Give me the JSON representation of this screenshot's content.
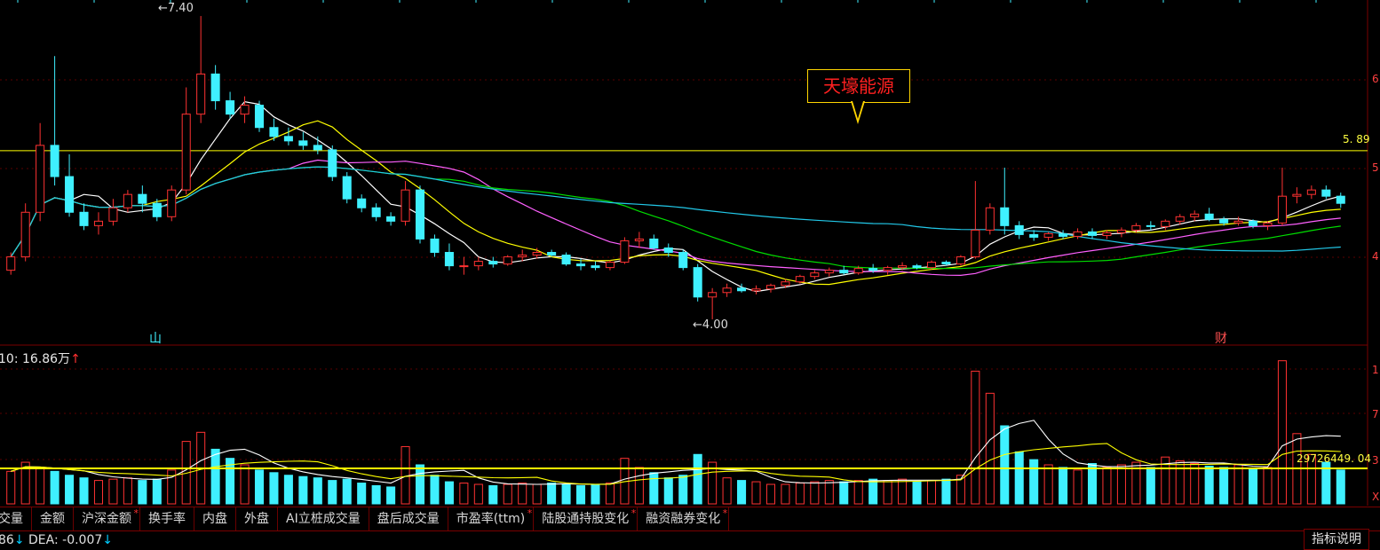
{
  "stock_name": "天壕能源",
  "labels": {
    "high": "7.40",
    "low": "4.00",
    "ref_price": "5. 89",
    "vol_ref": "29726449. 04",
    "vol_indicator_prefix": "10: 16.86万",
    "vol_indicator_arrow": "↑",
    "mark_left": "山",
    "mark_right": "财"
  },
  "right_axis_ticks": {
    "price": [
      "6",
      "5",
      "4"
    ],
    "volume": [
      "1",
      "7",
      "3",
      "X"
    ]
  },
  "tabs": [
    {
      "label": "交量",
      "star": false
    },
    {
      "label": "金额",
      "star": false
    },
    {
      "label": "沪深金额",
      "star": true
    },
    {
      "label": "换手率",
      "star": false
    },
    {
      "label": "内盘",
      "star": false
    },
    {
      "label": "外盘",
      "star": false
    },
    {
      "label": "AI立桩成交量",
      "star": false
    },
    {
      "label": "盘后成交量",
      "star": false
    },
    {
      "label": "市盈率(ttm)",
      "star": true
    },
    {
      "label": "陆股通持股变化",
      "star": true
    },
    {
      "label": "融资融券变化",
      "star": true
    }
  ],
  "status": {
    "left_value": "86",
    "dea_text": "DEA: -0.007",
    "help_button": "指标说明"
  },
  "colors": {
    "up": "#ff3232",
    "down": "#3ff0ff",
    "ma5": "#ffffff",
    "ma10": "#ffff00",
    "ma20": "#ff60ff",
    "ma30": "#00dd00",
    "ma60": "#22c8e8",
    "ref_line": "#ffff00",
    "border": "#7a0000"
  },
  "chart_data": {
    "type": "candlestick",
    "price_range": [
      3.9,
      7.5
    ],
    "price_high": 7.4,
    "price_low": 4.0,
    "ref_price": 5.89,
    "candles": [
      [
        4.55,
        4.75,
        4.5,
        4.7
      ],
      [
        4.7,
        5.3,
        4.65,
        5.2
      ],
      [
        5.2,
        6.2,
        5.1,
        5.95
      ],
      [
        5.95,
        6.95,
        5.5,
        5.6
      ],
      [
        5.6,
        5.85,
        5.15,
        5.2
      ],
      [
        5.2,
        5.3,
        5.0,
        5.05
      ],
      [
        5.05,
        5.2,
        4.95,
        5.1
      ],
      [
        5.1,
        5.35,
        5.05,
        5.25
      ],
      [
        5.25,
        5.45,
        5.2,
        5.4
      ],
      [
        5.4,
        5.5,
        5.2,
        5.3
      ],
      [
        5.3,
        5.35,
        5.1,
        5.15
      ],
      [
        5.15,
        5.5,
        5.1,
        5.45
      ],
      [
        5.45,
        6.6,
        5.4,
        6.3
      ],
      [
        6.3,
        7.4,
        6.2,
        6.75
      ],
      [
        6.75,
        6.85,
        6.35,
        6.45
      ],
      [
        6.45,
        6.55,
        6.25,
        6.3
      ],
      [
        6.3,
        6.5,
        6.2,
        6.4
      ],
      [
        6.4,
        6.45,
        6.1,
        6.15
      ],
      [
        6.15,
        6.25,
        6.0,
        6.05
      ],
      [
        6.05,
        6.15,
        5.95,
        6.0
      ],
      [
        6.0,
        6.1,
        5.9,
        5.95
      ],
      [
        5.95,
        6.05,
        5.85,
        5.9
      ],
      [
        5.9,
        5.95,
        5.55,
        5.6
      ],
      [
        5.6,
        5.65,
        5.3,
        5.35
      ],
      [
        5.35,
        5.4,
        5.2,
        5.25
      ],
      [
        5.25,
        5.3,
        5.1,
        5.15
      ],
      [
        5.15,
        5.2,
        5.05,
        5.1
      ],
      [
        5.1,
        5.55,
        5.05,
        5.45
      ],
      [
        5.45,
        5.5,
        4.85,
        4.9
      ],
      [
        4.9,
        4.95,
        4.7,
        4.75
      ],
      [
        4.75,
        4.85,
        4.55,
        4.6
      ],
      [
        4.6,
        4.7,
        4.5,
        4.6
      ],
      [
        4.6,
        4.7,
        4.55,
        4.65
      ],
      [
        4.65,
        4.7,
        4.58,
        4.62
      ],
      [
        4.62,
        4.72,
        4.6,
        4.7
      ],
      [
        4.7,
        4.78,
        4.65,
        4.72
      ],
      [
        4.72,
        4.8,
        4.68,
        4.75
      ],
      [
        4.75,
        4.78,
        4.7,
        4.72
      ],
      [
        4.72,
        4.75,
        4.6,
        4.62
      ],
      [
        4.62,
        4.68,
        4.55,
        4.6
      ],
      [
        4.6,
        4.65,
        4.55,
        4.58
      ],
      [
        4.58,
        4.66,
        4.55,
        4.64
      ],
      [
        4.64,
        4.92,
        4.62,
        4.88
      ],
      [
        4.88,
        4.98,
        4.8,
        4.9
      ],
      [
        4.9,
        4.95,
        4.78,
        4.8
      ],
      [
        4.8,
        4.85,
        4.7,
        4.75
      ],
      [
        4.75,
        4.78,
        4.55,
        4.58
      ],
      [
        4.58,
        4.62,
        4.2,
        4.25
      ],
      [
        4.25,
        4.35,
        4.0,
        4.3
      ],
      [
        4.3,
        4.4,
        4.25,
        4.35
      ],
      [
        4.35,
        4.4,
        4.3,
        4.32
      ],
      [
        4.32,
        4.38,
        4.28,
        4.34
      ],
      [
        4.34,
        4.4,
        4.3,
        4.38
      ],
      [
        4.38,
        4.45,
        4.35,
        4.42
      ],
      [
        4.42,
        4.5,
        4.4,
        4.48
      ],
      [
        4.48,
        4.55,
        4.45,
        4.52
      ],
      [
        4.52,
        4.58,
        4.48,
        4.55
      ],
      [
        4.55,
        4.6,
        4.5,
        4.52
      ],
      [
        4.52,
        4.6,
        4.5,
        4.57
      ],
      [
        4.57,
        4.62,
        4.52,
        4.55
      ],
      [
        4.55,
        4.6,
        4.5,
        4.58
      ],
      [
        4.58,
        4.64,
        4.55,
        4.6
      ],
      [
        4.6,
        4.62,
        4.56,
        4.58
      ],
      [
        4.58,
        4.66,
        4.56,
        4.64
      ],
      [
        4.64,
        4.66,
        4.6,
        4.62
      ],
      [
        4.62,
        4.72,
        4.6,
        4.7
      ],
      [
        4.7,
        5.55,
        4.68,
        5.0
      ],
      [
        5.0,
        5.3,
        4.95,
        5.25
      ],
      [
        5.25,
        5.7,
        4.95,
        5.05
      ],
      [
        5.05,
        5.1,
        4.9,
        4.95
      ],
      [
        4.95,
        5.0,
        4.88,
        4.92
      ],
      [
        4.92,
        4.98,
        4.88,
        4.96
      ],
      [
        4.96,
        5.0,
        4.9,
        4.93
      ],
      [
        4.93,
        5.02,
        4.9,
        4.98
      ],
      [
        4.98,
        5.02,
        4.9,
        4.94
      ],
      [
        4.94,
        5.0,
        4.9,
        4.97
      ],
      [
        4.97,
        5.03,
        4.92,
        5.0
      ],
      [
        5.0,
        5.08,
        4.97,
        5.05
      ],
      [
        5.05,
        5.1,
        5.0,
        5.04
      ],
      [
        5.04,
        5.12,
        5.0,
        5.1
      ],
      [
        5.1,
        5.18,
        5.06,
        5.15
      ],
      [
        5.15,
        5.22,
        5.1,
        5.18
      ],
      [
        5.18,
        5.25,
        5.1,
        5.12
      ],
      [
        5.12,
        5.15,
        5.05,
        5.08
      ],
      [
        5.08,
        5.15,
        5.05,
        5.1
      ],
      [
        5.1,
        5.12,
        5.02,
        5.05
      ],
      [
        5.05,
        5.1,
        5.0,
        5.08
      ],
      [
        5.08,
        5.7,
        5.05,
        5.38
      ],
      [
        5.38,
        5.48,
        5.3,
        5.4
      ],
      [
        5.4,
        5.5,
        5.35,
        5.45
      ],
      [
        5.45,
        5.5,
        5.35,
        5.38
      ],
      [
        5.38,
        5.42,
        5.25,
        5.3
      ]
    ],
    "volume_range": [
      0,
      12
    ],
    "volumes": [
      2.5,
      3.2,
      2.8,
      2.5,
      2.2,
      2.0,
      1.8,
      1.9,
      2.0,
      1.8,
      1.9,
      2.6,
      4.8,
      5.5,
      4.2,
      3.5,
      3.0,
      2.6,
      2.4,
      2.2,
      2.1,
      2.0,
      1.8,
      1.9,
      1.6,
      1.4,
      1.3,
      4.4,
      3.0,
      2.2,
      1.7,
      1.6,
      1.5,
      1.4,
      1.5,
      1.6,
      1.5,
      1.6,
      1.5,
      1.4,
      1.5,
      1.6,
      3.5,
      2.8,
      2.4,
      2.0,
      2.2,
      3.8,
      3.2,
      2.0,
      1.8,
      1.7,
      1.5,
      1.5,
      1.6,
      1.7,
      1.8,
      1.7,
      1.8,
      1.9,
      1.8,
      1.9,
      1.7,
      1.8,
      1.9,
      2.2,
      10.2,
      8.5,
      6.0,
      4.0,
      3.4,
      3.0,
      2.8,
      2.6,
      3.1,
      2.8,
      3.0,
      3.2,
      2.8,
      3.6,
      3.3,
      3.1,
      2.9,
      2.8,
      3.0,
      2.7,
      2.8,
      11.0,
      5.4,
      3.8,
      3.2,
      2.6
    ],
    "volume_ref": 29726449.04
  }
}
